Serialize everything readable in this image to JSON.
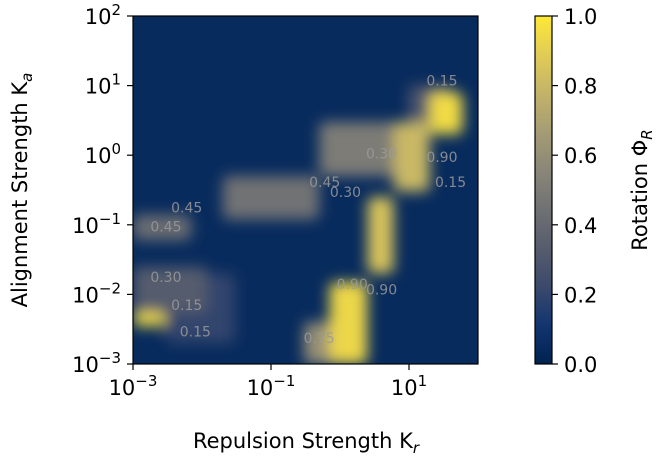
{
  "chart_data": {
    "type": "heatmap",
    "xlabel": "Repulsion Strength K",
    "xlabel_sub": "r",
    "ylabel": "Alignment Strength K",
    "ylabel_sub": "a",
    "x_scale": "log",
    "y_scale": "log",
    "xlim": [
      0.001,
      100
    ],
    "ylim": [
      0.001,
      100
    ],
    "x_ticks": [
      {
        "value": 0.001,
        "base": "10",
        "exp": "−3"
      },
      {
        "value": 0.1,
        "base": "10",
        "exp": "−1"
      },
      {
        "value": 10,
        "base": "10",
        "exp": "1"
      }
    ],
    "y_ticks": [
      {
        "value": 0.001,
        "base": "10",
        "exp": "−3"
      },
      {
        "value": 0.01,
        "base": "10",
        "exp": "−2"
      },
      {
        "value": 0.1,
        "base": "10",
        "exp": "−1"
      },
      {
        "value": 1,
        "base": "10",
        "exp": "0"
      },
      {
        "value": 10,
        "base": "10",
        "exp": "1"
      },
      {
        "value": 100,
        "base": "10",
        "exp": "2"
      }
    ],
    "colorbar": {
      "label": "Rotation Φ",
      "label_sub": "R",
      "range": [
        0.0,
        1.0
      ],
      "ticks": [
        "0.0",
        "0.2",
        "0.4",
        "0.6",
        "0.8",
        "1.0"
      ],
      "colormap": "cividis",
      "stops": [
        "#00224e",
        "#123570",
        "#3b496c",
        "#575d6d",
        "#707173",
        "#8a8678",
        "#a59c74",
        "#c3b369",
        "#e1cc55",
        "#fee838"
      ]
    },
    "grid": false,
    "background_value": 0.05,
    "regions": [
      {
        "x": [
          0.001,
          0.003
        ],
        "y": [
          0.0035,
          0.0055
        ],
        "value": 0.95
      },
      {
        "x": [
          0.001,
          0.012
        ],
        "y": [
          0.0055,
          0.025
        ],
        "value": 0.32
      },
      {
        "x": [
          0.001,
          0.007
        ],
        "y": [
          0.06,
          0.14
        ],
        "value": 0.42
      },
      {
        "x": [
          0.7,
          2.5
        ],
        "y": [
          0.001,
          0.015
        ],
        "value": 0.93
      },
      {
        "x": [
          0.3,
          0.9
        ],
        "y": [
          0.001,
          0.004
        ],
        "value": 0.6
      },
      {
        "x": [
          2.5,
          6
        ],
        "y": [
          0.02,
          0.25
        ],
        "value": 0.85
      },
      {
        "x": [
          6,
          20
        ],
        "y": [
          0.3,
          3
        ],
        "value": 0.8
      },
      {
        "x": [
          20,
          60
        ],
        "y": [
          2,
          8
        ],
        "value": 0.95
      },
      {
        "x": [
          0.02,
          0.5
        ],
        "y": [
          0.12,
          0.5
        ],
        "value": 0.45
      },
      {
        "x": [
          0.5,
          10
        ],
        "y": [
          0.5,
          3
        ],
        "value": 0.5
      },
      {
        "x": [
          10,
          40
        ],
        "y": [
          3,
          10
        ],
        "value": 0.3
      },
      {
        "x": [
          0.003,
          0.03
        ],
        "y": [
          0.002,
          0.02
        ],
        "value": 0.2
      }
    ],
    "contour_labels": [
      {
        "text": "0.15",
        "x": 30,
        "y": 10
      },
      {
        "text": "0.15",
        "x": 40,
        "y": 0.35
      },
      {
        "text": "0.30",
        "x": 4,
        "y": 0.9
      },
      {
        "text": "0.45",
        "x": 0.6,
        "y": 0.35
      },
      {
        "text": "0.30",
        "x": 1.2,
        "y": 0.25
      },
      {
        "text": "0.45",
        "x": 0.006,
        "y": 0.15
      },
      {
        "text": "0.45",
        "x": 0.003,
        "y": 0.08
      },
      {
        "text": "0.30",
        "x": 0.003,
        "y": 0.015
      },
      {
        "text": "0.15",
        "x": 0.006,
        "y": 0.006
      },
      {
        "text": "0.15",
        "x": 0.008,
        "y": 0.0025
      },
      {
        "text": "0.90",
        "x": 1.5,
        "y": 0.012
      },
      {
        "text": "0.90",
        "x": 4,
        "y": 0.01
      },
      {
        "text": "0.75",
        "x": 0.5,
        "y": 0.002
      },
      {
        "text": "0.90",
        "x": 30,
        "y": 0.8
      }
    ]
  }
}
